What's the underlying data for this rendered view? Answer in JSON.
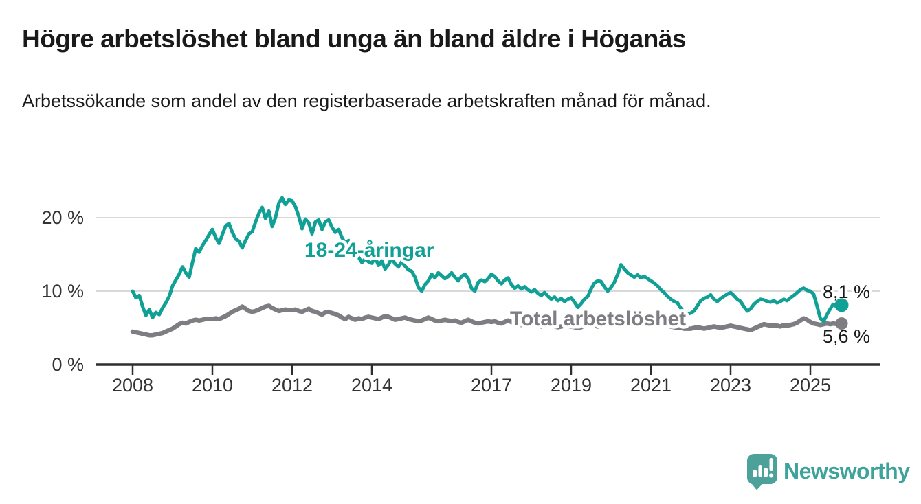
{
  "title": "Högre arbetslöshet bland unga än bland äldre i Höganäs",
  "subtitle": "Arbetssökande som andel av den registerbaserade arbetskraften månad för månad.",
  "branding": {
    "logo_text": "Newsworthy",
    "logo_icon": "bar-chart-speech-bubble-icon",
    "logo_color": "#4da19b",
    "logo_text_color": "#3da39b"
  },
  "colors": {
    "young_series": "#11a096",
    "total_series": "#7d7d82",
    "axis": "#2e2e2e",
    "gridline": "#d9d9d9",
    "tick_text": "#333333",
    "value_text": "#1a1a1a"
  },
  "chart_data": {
    "type": "line",
    "title": "Högre arbetslöshet bland unga än bland äldre i Höganäs",
    "subtitle": "Arbetssökande som andel av den registerbaserade arbetskraften månad för månad.",
    "x_unit": "month",
    "x_start": "2008-01",
    "x_end": "2025-10",
    "x_tick_years": [
      2008,
      2010,
      2012,
      2014,
      2017,
      2019,
      2021,
      2023,
      2025
    ],
    "x_tick_labels": [
      "2008",
      "2010",
      "2012",
      "2014",
      "2017",
      "2019",
      "2021",
      "2023",
      "2025"
    ],
    "y_ticks": [
      0,
      10,
      20
    ],
    "y_tick_labels": [
      "0 %",
      "10 %",
      "20 %"
    ],
    "ylim": [
      0,
      23
    ],
    "grid": "horizontal-at-10-and-20",
    "legend_position": "inline-labels-on-lines",
    "series": [
      {
        "name": "18-24-åringar",
        "color": "#11a096",
        "end_value": 8.1,
        "end_label": "8,1 %",
        "values": [
          10.0,
          9.1,
          9.4,
          7.9,
          6.7,
          7.5,
          6.4,
          7.1,
          6.8,
          7.7,
          8.4,
          9.3,
          10.7,
          11.5,
          12.3,
          13.3,
          12.5,
          11.9,
          13.9,
          15.8,
          15.3,
          16.2,
          16.9,
          17.7,
          18.4,
          17.3,
          16.5,
          17.7,
          18.9,
          19.2,
          18.0,
          17.1,
          16.8,
          15.9,
          16.9,
          17.8,
          18.1,
          19.4,
          20.6,
          21.4,
          19.9,
          20.9,
          18.8,
          20.0,
          22.0,
          22.7,
          21.8,
          22.4,
          22.3,
          21.5,
          20.2,
          18.5,
          19.8,
          19.3,
          17.8,
          19.4,
          19.7,
          18.4,
          19.4,
          19.7,
          18.7,
          18.0,
          18.4,
          17.3,
          16.5,
          16.9,
          15.8,
          15.0,
          14.6,
          13.9,
          14.4,
          14.0,
          13.8,
          14.6,
          13.5,
          14.1,
          13.0,
          13.6,
          14.5,
          13.7,
          13.3,
          14.0,
          13.4,
          12.9,
          12.7,
          11.9,
          10.5,
          10.0,
          10.9,
          11.4,
          12.3,
          11.8,
          12.5,
          12.1,
          11.7,
          12.0,
          12.5,
          11.9,
          11.4,
          12.0,
          12.3,
          11.7,
          10.4,
          10.0,
          11.2,
          11.5,
          11.3,
          11.7,
          12.3,
          12.0,
          11.4,
          11.0,
          11.5,
          11.8,
          10.9,
          10.4,
          10.7,
          10.3,
          10.6,
          10.2,
          9.9,
          10.2,
          9.7,
          9.4,
          9.8,
          9.3,
          8.9,
          9.2,
          8.7,
          9.0,
          8.6,
          8.9,
          9.1,
          8.5,
          7.8,
          8.3,
          8.9,
          9.3,
          10.3,
          11.1,
          11.4,
          11.3,
          10.6,
          10.0,
          10.5,
          11.2,
          12.3,
          13.6,
          13.0,
          12.5,
          12.2,
          11.9,
          12.2,
          11.8,
          12.0,
          11.7,
          11.4,
          11.1,
          10.7,
          10.2,
          9.8,
          9.3,
          8.9,
          8.6,
          8.4,
          7.7,
          7.1,
          6.9,
          7.0,
          7.3,
          8.0,
          8.7,
          9.0,
          9.2,
          9.5,
          8.9,
          8.6,
          9.0,
          9.3,
          9.6,
          9.8,
          9.4,
          8.9,
          8.6,
          7.9,
          7.3,
          7.6,
          8.2,
          8.6,
          8.9,
          8.8,
          8.6,
          8.5,
          8.7,
          8.4,
          8.6,
          8.9,
          8.7,
          9.1,
          9.4,
          9.8,
          10.2,
          10.4,
          10.1,
          10.0,
          9.6,
          8.0,
          6.3,
          5.9,
          6.8,
          7.6,
          8.3,
          7.8,
          8.1
        ]
      },
      {
        "name": "Total arbetslöshet",
        "color": "#7d7d82",
        "end_value": 5.6,
        "end_label": "5,6 %",
        "values": [
          4.5,
          4.4,
          4.3,
          4.2,
          4.1,
          4.0,
          4.0,
          4.1,
          4.2,
          4.3,
          4.5,
          4.7,
          4.9,
          5.2,
          5.5,
          5.7,
          5.6,
          5.8,
          6.0,
          6.1,
          6.0,
          6.1,
          6.2,
          6.2,
          6.2,
          6.3,
          6.2,
          6.4,
          6.6,
          6.9,
          7.2,
          7.4,
          7.6,
          7.9,
          7.6,
          7.3,
          7.2,
          7.3,
          7.5,
          7.7,
          7.9,
          8.0,
          7.7,
          7.5,
          7.3,
          7.4,
          7.5,
          7.4,
          7.4,
          7.5,
          7.3,
          7.2,
          7.4,
          7.6,
          7.3,
          7.2,
          7.0,
          6.8,
          7.1,
          7.2,
          7.0,
          6.9,
          6.7,
          6.4,
          6.2,
          6.5,
          6.3,
          6.1,
          6.3,
          6.2,
          6.4,
          6.5,
          6.4,
          6.3,
          6.2,
          6.4,
          6.6,
          6.5,
          6.3,
          6.1,
          6.2,
          6.3,
          6.4,
          6.2,
          6.1,
          6.0,
          5.9,
          6.0,
          6.2,
          6.4,
          6.2,
          6.0,
          5.9,
          6.0,
          6.1,
          6.0,
          5.9,
          6.0,
          5.8,
          5.7,
          5.9,
          6.1,
          5.9,
          5.7,
          5.6,
          5.7,
          5.8,
          5.9,
          5.8,
          5.9,
          5.7,
          5.6,
          5.8,
          6.0,
          5.8,
          5.6,
          5.5,
          5.4,
          5.5,
          5.6,
          5.5,
          5.4,
          5.3,
          5.2,
          5.4,
          5.6,
          5.4,
          5.2,
          5.1,
          5.2,
          5.3,
          5.2,
          5.2,
          5.1,
          5.0,
          5.1,
          5.3,
          5.5,
          5.4,
          5.3,
          5.2,
          5.3,
          5.4,
          5.5,
          5.7,
          5.9,
          6.2,
          6.5,
          6.6,
          6.5,
          6.3,
          6.1,
          6.0,
          5.9,
          5.8,
          5.9,
          5.8,
          5.7,
          5.6,
          5.5,
          5.4,
          5.3,
          5.2,
          5.1,
          5.0,
          5.0,
          4.9,
          4.9,
          4.9,
          5.0,
          5.1,
          5.0,
          4.9,
          5.0,
          5.1,
          5.2,
          5.1,
          5.0,
          5.1,
          5.2,
          5.3,
          5.2,
          5.1,
          5.0,
          4.9,
          4.8,
          4.7,
          4.9,
          5.1,
          5.3,
          5.5,
          5.4,
          5.3,
          5.4,
          5.3,
          5.2,
          5.4,
          5.3,
          5.4,
          5.5,
          5.7,
          6.0,
          6.3,
          6.1,
          5.8,
          5.6,
          5.5,
          5.4,
          5.5,
          5.6,
          5.5,
          5.6,
          5.5,
          5.6
        ]
      }
    ]
  }
}
